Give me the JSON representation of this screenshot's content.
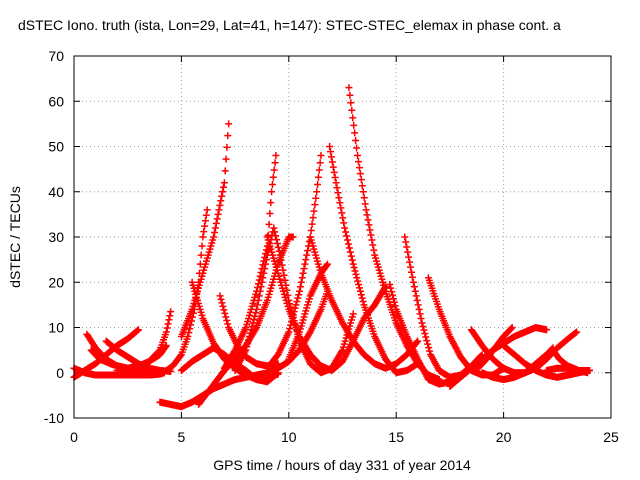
{
  "chart_data": {
    "type": "scatter",
    "title": "dSTEC Iono. truth (ista, Lon=29, Lat=41, h=147): STEC-STEC_elemax in phase cont. a",
    "xlabel": "GPS time / hours of day 331 of year 2014",
    "ylabel": "dSTEC  / TECUs",
    "xlim": [
      0,
      25
    ],
    "ylim": [
      -10,
      70
    ],
    "xticks": [
      "0",
      "5",
      "10",
      "15",
      "20",
      "25"
    ],
    "yticks": [
      "-10",
      "0",
      "10",
      "20",
      "30",
      "40",
      "50",
      "60",
      "70"
    ],
    "grid": true,
    "marker": "+",
    "color": "#ff0000",
    "series": [
      {
        "points": [
          [
            0.0,
            1.0
          ],
          [
            0.5,
            0.0
          ],
          [
            1.0,
            -0.5
          ],
          [
            1.5,
            -0.5
          ],
          [
            2.0,
            -0.5
          ],
          [
            2.5,
            -0.5
          ],
          [
            3.0,
            -0.5
          ],
          [
            3.5,
            -0.5
          ],
          [
            4.0,
            -0.3
          ],
          [
            4.2,
            0.0
          ]
        ]
      },
      {
        "points": [
          [
            0.6,
            8.5
          ],
          [
            1.0,
            5.5
          ],
          [
            1.5,
            3.0
          ],
          [
            2.0,
            1.5
          ],
          [
            2.5,
            0.7
          ],
          [
            3.0,
            0.3
          ],
          [
            3.5,
            0.0
          ],
          [
            4.0,
            0.0
          ],
          [
            4.3,
            0.5
          ],
          [
            4.6,
            1.5
          ],
          [
            5.0,
            4.0
          ],
          [
            5.3,
            8.0
          ],
          [
            5.6,
            14.0
          ],
          [
            5.8,
            20.0
          ],
          [
            6.0,
            30.0
          ],
          [
            6.2,
            36.0
          ]
        ]
      },
      {
        "points": [
          [
            0.0,
            -1.0
          ],
          [
            0.5,
            0.5
          ],
          [
            1.0,
            2.0
          ],
          [
            1.5,
            4.0
          ],
          [
            2.0,
            6.0
          ],
          [
            2.5,
            7.5
          ],
          [
            3.0,
            9.5
          ]
        ]
      },
      {
        "points": [
          [
            1.5,
            7.0
          ],
          [
            2.0,
            5.0
          ],
          [
            2.5,
            3.5
          ],
          [
            3.0,
            2.0
          ],
          [
            3.5,
            1.0
          ],
          [
            4.0,
            0.5
          ],
          [
            4.5,
            0.3
          ]
        ]
      },
      {
        "points": [
          [
            0.8,
            5.0
          ],
          [
            1.2,
            3.0
          ],
          [
            1.8,
            1.8
          ],
          [
            2.5,
            1.0
          ],
          [
            3.0,
            1.2
          ],
          [
            3.5,
            2.5
          ],
          [
            4.0,
            5.0
          ],
          [
            4.3,
            9.0
          ],
          [
            4.5,
            13.5
          ]
        ]
      },
      {
        "points": [
          [
            2.0,
            0.5
          ],
          [
            2.5,
            1.0
          ],
          [
            3.0,
            1.5
          ],
          [
            3.5,
            2.5
          ],
          [
            4.0,
            4.0
          ],
          [
            4.3,
            6.0
          ]
        ]
      },
      {
        "points": [
          [
            4.0,
            -6.5
          ],
          [
            4.5,
            -7.0
          ],
          [
            5.0,
            -7.5
          ],
          [
            5.5,
            -6.5
          ],
          [
            6.0,
            -5.0
          ],
          [
            6.5,
            -3.5
          ],
          [
            7.0,
            -2.5
          ],
          [
            7.5,
            -1.5
          ],
          [
            8.0,
            -1.0
          ],
          [
            8.5,
            -0.5
          ],
          [
            9.0,
            0.0
          ],
          [
            9.5,
            1.0
          ],
          [
            10.0,
            2.5
          ],
          [
            10.5,
            5.0
          ],
          [
            11.0,
            9.0
          ],
          [
            11.5,
            14.0
          ],
          [
            11.8,
            18.0
          ]
        ]
      },
      {
        "points": [
          [
            5.0,
            8.0
          ],
          [
            5.5,
            14.0
          ],
          [
            6.0,
            22.0
          ],
          [
            6.5,
            30.0
          ],
          [
            7.0,
            42.0
          ],
          [
            7.2,
            55.0
          ]
        ]
      },
      {
        "points": [
          [
            5.0,
            0.5
          ],
          [
            5.5,
            2.5
          ],
          [
            6.0,
            4.0
          ],
          [
            6.5,
            5.5
          ],
          [
            7.0,
            4.0
          ],
          [
            7.5,
            2.0
          ],
          [
            8.0,
            0.5
          ],
          [
            8.5,
            -1.5
          ],
          [
            9.0,
            -2.0
          ],
          [
            9.5,
            0.0
          ]
        ]
      },
      {
        "points": [
          [
            5.5,
            20.0
          ],
          [
            6.0,
            12.0
          ],
          [
            6.5,
            6.5
          ],
          [
            7.0,
            3.0
          ],
          [
            7.5,
            1.0
          ],
          [
            8.0,
            -0.5
          ],
          [
            8.5,
            -1.5
          ],
          [
            9.0,
            -1.0
          ],
          [
            9.5,
            -0.3
          ]
        ]
      },
      {
        "points": [
          [
            5.8,
            -7.0
          ],
          [
            6.2,
            -4.5
          ],
          [
            6.6,
            -2.0
          ],
          [
            7.0,
            0.5
          ],
          [
            7.5,
            3.0
          ],
          [
            8.0,
            6.0
          ],
          [
            8.5,
            10.0
          ],
          [
            9.0,
            16.0
          ],
          [
            9.5,
            24.0
          ],
          [
            10.0,
            30.0
          ],
          [
            10.2,
            30.0
          ]
        ]
      },
      {
        "points": [
          [
            6.8,
            17.0
          ],
          [
            7.2,
            10.0
          ],
          [
            7.6,
            6.0
          ],
          [
            8.0,
            3.5
          ],
          [
            8.5,
            2.0
          ],
          [
            9.0,
            1.5
          ],
          [
            9.5,
            2.0
          ]
        ]
      },
      {
        "points": [
          [
            7.0,
            1.0
          ],
          [
            7.5,
            5.0
          ],
          [
            8.0,
            10.0
          ],
          [
            8.5,
            18.0
          ],
          [
            9.0,
            28.0
          ],
          [
            9.2,
            40.0
          ],
          [
            9.4,
            48.0
          ]
        ]
      },
      {
        "points": [
          [
            7.5,
            0.5
          ],
          [
            8.0,
            5.0
          ],
          [
            8.5,
            14.0
          ],
          [
            9.0,
            26.0
          ],
          [
            9.3,
            32.0
          ],
          [
            9.6,
            26.0
          ],
          [
            10.0,
            16.0
          ],
          [
            10.5,
            7.0
          ],
          [
            11.0,
            2.0
          ],
          [
            11.5,
            0.0
          ],
          [
            12.0,
            1.0
          ],
          [
            12.5,
            5.0
          ],
          [
            13.0,
            13.0
          ]
        ]
      },
      {
        "points": [
          [
            9.0,
            30.0
          ],
          [
            9.5,
            22.0
          ],
          [
            10.0,
            14.0
          ],
          [
            10.5,
            8.0
          ],
          [
            11.0,
            4.0
          ],
          [
            11.5,
            1.5
          ],
          [
            12.0,
            0.5
          ],
          [
            12.5,
            2.5
          ],
          [
            13.0,
            7.0
          ],
          [
            13.5,
            12.0
          ],
          [
            14.0,
            15.0
          ],
          [
            14.5,
            19.0
          ]
        ]
      },
      {
        "points": [
          [
            9.0,
            1.0
          ],
          [
            9.5,
            4.0
          ],
          [
            10.0,
            9.0
          ],
          [
            10.5,
            18.0
          ],
          [
            11.0,
            30.0
          ],
          [
            11.3,
            40.0
          ],
          [
            11.5,
            48.0
          ]
        ]
      },
      {
        "points": [
          [
            10.0,
            3.0
          ],
          [
            10.5,
            9.0
          ],
          [
            11.0,
            17.0
          ],
          [
            11.5,
            22.0
          ],
          [
            11.8,
            24.0
          ]
        ]
      },
      {
        "points": [
          [
            11.0,
            30.0
          ],
          [
            11.5,
            22.0
          ],
          [
            12.0,
            16.0
          ],
          [
            12.5,
            11.0
          ],
          [
            13.0,
            7.0
          ],
          [
            13.5,
            4.0
          ],
          [
            14.0,
            2.0
          ],
          [
            14.5,
            1.0
          ],
          [
            15.0,
            2.0
          ],
          [
            15.5,
            4.0
          ],
          [
            16.0,
            7.0
          ]
        ]
      },
      {
        "points": [
          [
            11.9,
            50.0
          ],
          [
            12.2,
            42.0
          ],
          [
            12.6,
            32.0
          ],
          [
            13.0,
            24.0
          ],
          [
            13.5,
            15.0
          ],
          [
            14.0,
            8.0
          ],
          [
            14.5,
            3.0
          ],
          [
            15.0,
            0.0
          ],
          [
            15.5,
            0.5
          ],
          [
            16.0,
            2.0
          ]
        ]
      },
      {
        "points": [
          [
            12.8,
            63.0
          ],
          [
            13.2,
            48.0
          ],
          [
            13.6,
            36.0
          ],
          [
            14.0,
            26.0
          ],
          [
            14.5,
            18.0
          ],
          [
            15.0,
            11.0
          ],
          [
            15.5,
            6.0
          ],
          [
            16.0,
            2.0
          ],
          [
            16.5,
            -0.5
          ],
          [
            17.0,
            -1.5
          ]
        ]
      },
      {
        "points": [
          [
            14.7,
            19.5
          ],
          [
            15.0,
            14.0
          ],
          [
            15.5,
            8.0
          ],
          [
            16.0,
            3.0
          ],
          [
            16.5,
            -1.5
          ],
          [
            17.0,
            -2.5
          ],
          [
            17.5,
            -2.0
          ],
          [
            18.0,
            -0.5
          ]
        ]
      },
      {
        "points": [
          [
            15.4,
            30.0
          ],
          [
            15.8,
            20.0
          ],
          [
            16.2,
            11.0
          ],
          [
            16.6,
            4.0
          ],
          [
            17.0,
            0.5
          ],
          [
            17.5,
            -1.0
          ],
          [
            18.0,
            -0.5
          ],
          [
            18.5,
            1.5
          ],
          [
            19.0,
            4.0
          ]
        ]
      },
      {
        "points": [
          [
            16.5,
            21.0
          ],
          [
            17.0,
            14.0
          ],
          [
            17.5,
            8.0
          ],
          [
            18.0,
            3.5
          ],
          [
            18.5,
            0.5
          ],
          [
            19.0,
            -0.5
          ],
          [
            19.5,
            -0.5
          ],
          [
            20.0,
            1.0
          ]
        ]
      },
      {
        "points": [
          [
            18.5,
            9.5
          ],
          [
            19.0,
            6.0
          ],
          [
            19.5,
            3.0
          ],
          [
            20.0,
            1.0
          ],
          [
            20.5,
            0.0
          ],
          [
            21.0,
            0.0
          ],
          [
            21.5,
            1.0
          ],
          [
            22.0,
            3.0
          ],
          [
            22.5,
            5.5
          ],
          [
            23.0,
            7.5
          ],
          [
            23.4,
            9.0
          ]
        ]
      },
      {
        "points": [
          [
            17.5,
            -3.0
          ],
          [
            18.0,
            -1.0
          ],
          [
            18.5,
            1.0
          ],
          [
            19.0,
            3.0
          ],
          [
            19.5,
            5.0
          ],
          [
            20.0,
            6.5
          ],
          [
            20.5,
            8.0
          ],
          [
            21.0,
            9.0
          ],
          [
            21.5,
            10.0
          ],
          [
            22.0,
            9.5
          ]
        ]
      },
      {
        "points": [
          [
            18.8,
            1.0
          ],
          [
            19.2,
            3.0
          ],
          [
            19.6,
            5.5
          ],
          [
            20.0,
            8.0
          ],
          [
            20.4,
            10.0
          ]
        ]
      },
      {
        "points": [
          [
            20.0,
            6.0
          ],
          [
            20.5,
            4.0
          ],
          [
            21.0,
            2.0
          ],
          [
            21.5,
            0.5
          ],
          [
            22.0,
            -0.5
          ],
          [
            22.5,
            -1.0
          ],
          [
            23.0,
            -0.5
          ],
          [
            23.5,
            0.0
          ],
          [
            24.0,
            0.5
          ]
        ]
      },
      {
        "points": [
          [
            19.0,
            0.0
          ],
          [
            19.5,
            -1.0
          ],
          [
            20.0,
            -1.5
          ],
          [
            20.5,
            -1.0
          ],
          [
            21.0,
            0.0
          ],
          [
            21.5,
            2.0
          ],
          [
            22.0,
            4.0
          ],
          [
            22.3,
            5.5
          ]
        ]
      },
      {
        "points": [
          [
            22.0,
            0.5
          ],
          [
            22.5,
            1.0
          ],
          [
            23.0,
            1.0
          ],
          [
            23.5,
            0.5
          ],
          [
            23.9,
            0.0
          ]
        ]
      },
      {
        "points": [
          [
            22.3,
            5.0
          ],
          [
            22.6,
            3.0
          ],
          [
            23.0,
            1.5
          ],
          [
            23.5,
            0.5
          ],
          [
            24.0,
            0.5
          ]
        ]
      }
    ]
  }
}
